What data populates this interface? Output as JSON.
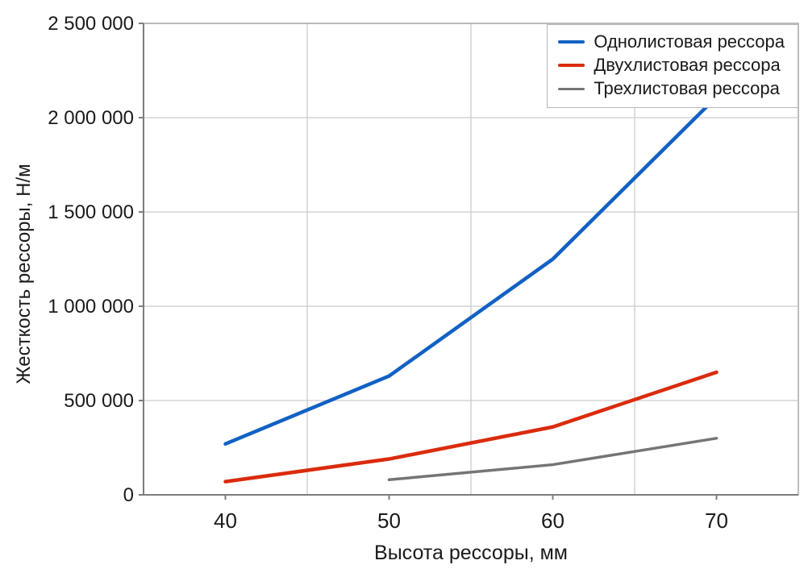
{
  "chart_data": {
    "type": "line",
    "title": "",
    "xlabel": "Высота рессоры, мм",
    "ylabel": "Жесткость рессоры, Н/м",
    "categories": [
      40,
      50,
      60,
      70
    ],
    "x_tick_labels": [
      "40",
      "50",
      "60",
      "70"
    ],
    "y_tick_values": [
      0,
      500000,
      1000000,
      1500000,
      2000000,
      2500000
    ],
    "y_tick_labels": [
      "0",
      "500 000",
      "1 000 000",
      "1 500 000",
      "2 000 000",
      "2 500 000"
    ],
    "ylim": [
      0,
      2500000
    ],
    "grid": "horizontal major lines; vertical lines between category ticks; full plot border",
    "legend_position": "top-right inside plot",
    "series": [
      {
        "name": "Однолистовая рессора",
        "color": "#1161c4",
        "values": [
          270000,
          630000,
          1250000,
          2110000
        ]
      },
      {
        "name": "Двухлистовая рессора",
        "color": "#da2b0d",
        "values": [
          70000,
          190000,
          360000,
          650000
        ]
      },
      {
        "name": "Трехлистовая рессора",
        "color": "#757575",
        "values": [
          null,
          80000,
          160000,
          300000
        ]
      }
    ],
    "colors": {
      "grid": "#cccccc",
      "border": "#a8a8a8",
      "axis": "#7d7d7d",
      "text": "#1a1a1a",
      "background": "#ffffff"
    }
  }
}
